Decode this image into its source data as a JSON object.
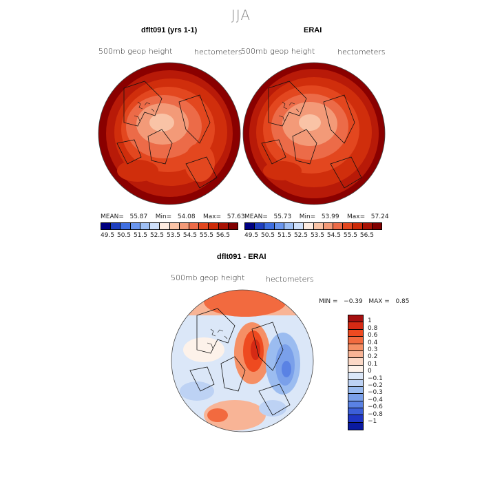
{
  "season": "JJA",
  "panels": {
    "model": {
      "title": "dflt091 (yrs 1-1)",
      "variable": "500mb geop height",
      "units": "hectometers",
      "stats": {
        "mean_label": "MEAN=",
        "mean": "55.87",
        "min_label": "Min=",
        "min": "54.08",
        "max_label": "Max=",
        "max": "57.63"
      }
    },
    "obs": {
      "title": "ERAI",
      "variable": "500mb geop height",
      "units": "hectometers",
      "stats": {
        "mean_label": "MEAN=",
        "mean": "55.73",
        "min_label": "Min=",
        "min": "53.99",
        "max_label": "Max=",
        "max": "57.24"
      }
    },
    "diff": {
      "title": "dflt091 - ERAI",
      "variable": "500mb geop height",
      "units": "hectometers",
      "stats": {
        "min_label": "MIN =",
        "min": "−0.39",
        "max_label": "MAX =",
        "max": "0.85"
      }
    }
  },
  "colorbar_abs": {
    "colors": [
      "#000080",
      "#1f3fbf",
      "#3f6fe0",
      "#6a96ee",
      "#9fc0f5",
      "#cfe0fb",
      "#fdebe0",
      "#f9c3a6",
      "#f39a78",
      "#ec6b48",
      "#e3471f",
      "#cc2a08",
      "#a81204",
      "#800000"
    ],
    "ticks": [
      "49.5",
      "50.5",
      "51.5",
      "52.5",
      "53.5",
      "54.5",
      "55.5",
      "56.5"
    ]
  },
  "colorbar_diff": {
    "colors": [
      "#a50f0f",
      "#d62a14",
      "#ee4a20",
      "#f26a3f",
      "#f58f65",
      "#f8b496",
      "#fbd8c6",
      "#fdf2ea",
      "#dbe7f8",
      "#bdd2f4",
      "#9bbcf0",
      "#7aa0ea",
      "#5a82e4",
      "#3c5fd8",
      "#1f36c4",
      "#0a1aa0"
    ],
    "ticks": [
      "1",
      "0.8",
      "0.6",
      "0.4",
      "0.3",
      "0.2",
      "0.1",
      "0",
      "−0.1",
      "−0.2",
      "−0.3",
      "−0.4",
      "−0.6",
      "−0.8",
      "−1"
    ]
  }
}
